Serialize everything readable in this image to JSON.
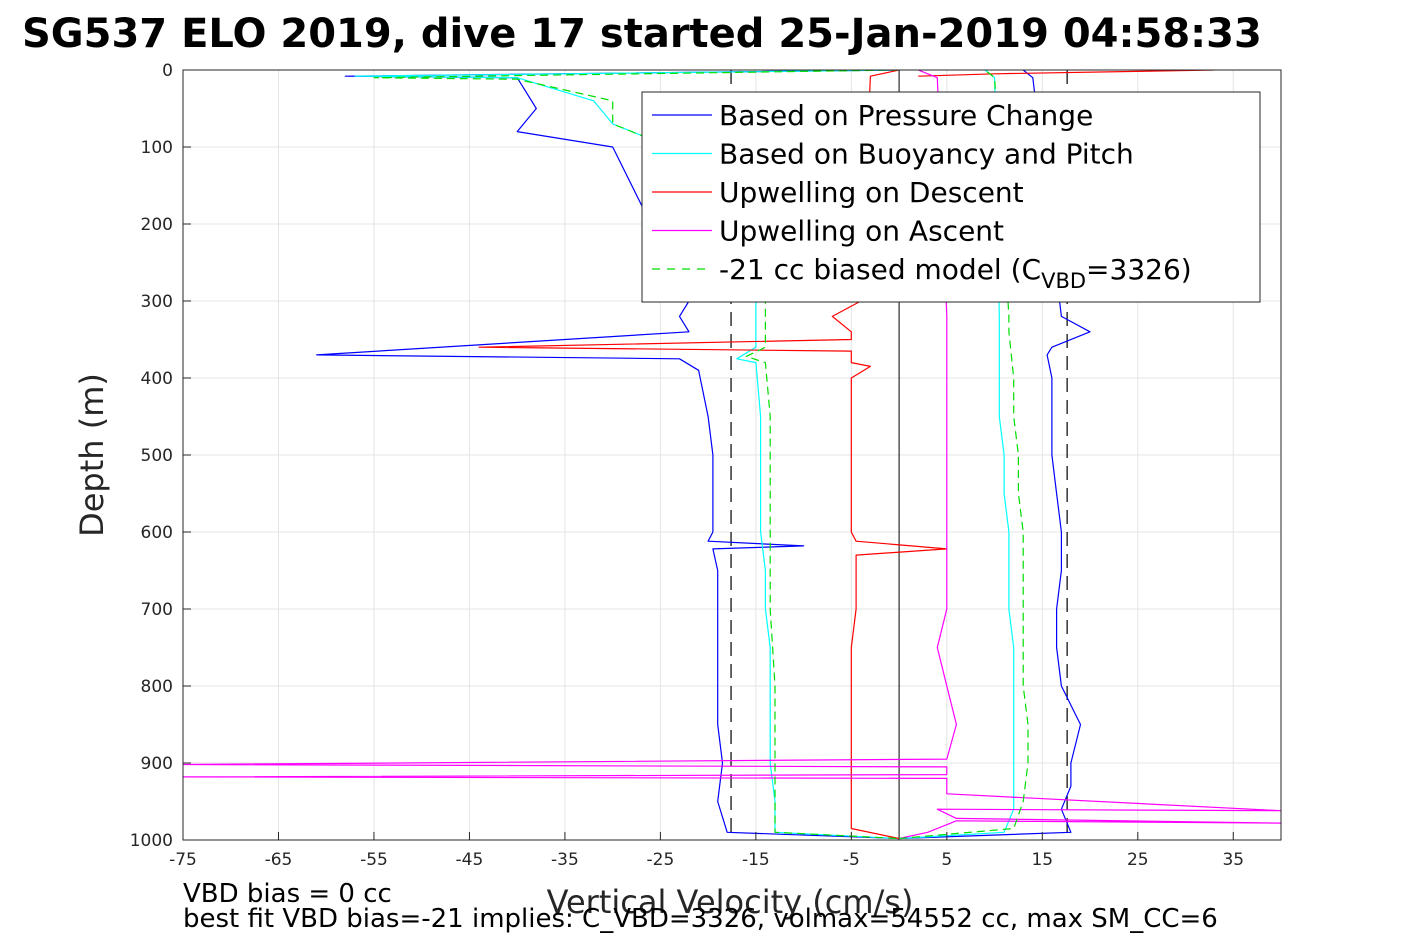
{
  "chart_data": {
    "type": "line",
    "title": "SG537 ELO 2019, dive 17 started 25-Jan-2019 04:58:33",
    "xlabel": "Vertical Velocity (cm/s)",
    "ylabel": "Depth (m)",
    "xlim": [
      -75,
      40
    ],
    "ylim": [
      0,
      1000
    ],
    "y_reversed": true,
    "grid": true,
    "legend_position": "top-right",
    "x_ticks": [
      "-75",
      "-65",
      "-55",
      "-45",
      "-35",
      "-25",
      "-15",
      "-5",
      "5",
      "15",
      "25",
      "35"
    ],
    "y_ticks": [
      "0",
      "100",
      "200",
      "300",
      "400",
      "500",
      "600",
      "700",
      "800",
      "900",
      "1000"
    ],
    "reference_lines": {
      "dashed_x": [
        -17.6,
        17.6
      ],
      "solid_x": [
        0
      ]
    },
    "series": [
      {
        "name": "Based on Pressure Change",
        "color": "#0000ff",
        "style": "solid",
        "descent": [
          [
            0,
            0
          ],
          [
            -58,
            8
          ],
          [
            -40,
            10
          ],
          [
            -38,
            50
          ],
          [
            -40,
            80
          ],
          [
            -30,
            100
          ],
          [
            -22,
            300
          ],
          [
            -23,
            320
          ],
          [
            -22,
            340
          ],
          [
            -61,
            370
          ],
          [
            -23,
            375
          ],
          [
            -21,
            390
          ],
          [
            -20,
            450
          ],
          [
            -19.5,
            500
          ],
          [
            -19.5,
            600
          ],
          [
            -20,
            612
          ],
          [
            -10,
            618
          ],
          [
            -19.5,
            622
          ],
          [
            -19,
            650
          ],
          [
            -19,
            700
          ],
          [
            -19,
            750
          ],
          [
            -19,
            800
          ],
          [
            -19,
            850
          ],
          [
            -18.5,
            900
          ],
          [
            -19,
            950
          ],
          [
            -18,
            990
          ],
          [
            0,
            998
          ]
        ],
        "ascent": [
          [
            0,
            998
          ],
          [
            18,
            990
          ],
          [
            17,
            960
          ],
          [
            18,
            930
          ],
          [
            18,
            900
          ],
          [
            19,
            850
          ],
          [
            17,
            800
          ],
          [
            16.5,
            750
          ],
          [
            16.5,
            700
          ],
          [
            17,
            650
          ],
          [
            17,
            600
          ],
          [
            16.5,
            550
          ],
          [
            16,
            500
          ],
          [
            16,
            450
          ],
          [
            16,
            400
          ],
          [
            15.5,
            370
          ],
          [
            16,
            360
          ],
          [
            20,
            340
          ],
          [
            17,
            320
          ],
          [
            14,
            10
          ],
          [
            13,
            0
          ]
        ]
      },
      {
        "name": "Based on Buoyancy and Pitch",
        "color": "#00ffff",
        "style": "solid",
        "descent": [
          [
            0,
            0
          ],
          [
            -57,
            8
          ],
          [
            -40,
            10
          ],
          [
            -32,
            40
          ],
          [
            -30,
            70
          ],
          [
            -24,
            100
          ],
          [
            -15,
            300
          ],
          [
            -15,
            320
          ],
          [
            -15,
            360
          ],
          [
            -17,
            375
          ],
          [
            -15,
            380
          ],
          [
            -14.5,
            450
          ],
          [
            -14.5,
            500
          ],
          [
            -14.5,
            600
          ],
          [
            -14,
            650
          ],
          [
            -14,
            700
          ],
          [
            -13.5,
            750
          ],
          [
            -13.5,
            800
          ],
          [
            -13.5,
            850
          ],
          [
            -13.5,
            900
          ],
          [
            -13,
            950
          ],
          [
            -13,
            990
          ],
          [
            0,
            998
          ]
        ],
        "ascent": [
          [
            0,
            998
          ],
          [
            11,
            990
          ],
          [
            12,
            960
          ],
          [
            12,
            930
          ],
          [
            12,
            900
          ],
          [
            12,
            850
          ],
          [
            12,
            800
          ],
          [
            12,
            750
          ],
          [
            11.5,
            700
          ],
          [
            11.5,
            650
          ],
          [
            11.5,
            600
          ],
          [
            11,
            550
          ],
          [
            11,
            500
          ],
          [
            10.5,
            450
          ],
          [
            10.5,
            400
          ],
          [
            10.5,
            370
          ],
          [
            10.5,
            340
          ],
          [
            10.5,
            320
          ],
          [
            10,
            10
          ],
          [
            9,
            0
          ]
        ]
      },
      {
        "name": "Upwelling on Descent",
        "color": "#ff0000",
        "style": "solid",
        "descent": [
          [
            0,
            0
          ],
          [
            -3,
            8
          ],
          [
            -4,
            300
          ],
          [
            -7,
            320
          ],
          [
            -5,
            340
          ],
          [
            -5,
            350
          ],
          [
            -44,
            360
          ],
          [
            -5,
            365
          ],
          [
            -5,
            380
          ],
          [
            -3,
            385
          ],
          [
            -5,
            400
          ],
          [
            -5,
            450
          ],
          [
            -5,
            500
          ],
          [
            -5,
            550
          ],
          [
            -5,
            600
          ],
          [
            -4.5,
            612
          ],
          [
            5,
            622
          ],
          [
            -4.5,
            630
          ],
          [
            -4.5,
            650
          ],
          [
            -4.5,
            700
          ],
          [
            -5,
            750
          ],
          [
            -5,
            800
          ],
          [
            -5,
            850
          ],
          [
            -5,
            900
          ],
          [
            -5,
            950
          ],
          [
            -5,
            985
          ],
          [
            0,
            998
          ]
        ],
        "ascent": [
          [
            33,
            0
          ],
          [
            10,
            5
          ],
          [
            2,
            8
          ]
        ]
      },
      {
        "name": "Upwelling on Ascent",
        "color": "#ff00ff",
        "style": "solid",
        "descent": [],
        "ascent": [
          [
            0,
            998
          ],
          [
            3,
            990
          ],
          [
            6,
            975
          ],
          [
            40,
            978
          ],
          [
            6,
            972
          ],
          [
            4,
            960
          ],
          [
            40,
            962
          ],
          [
            5,
            940
          ],
          [
            5,
            920
          ],
          [
            -75,
            918
          ],
          [
            5,
            915
          ],
          [
            5,
            905
          ],
          [
            -75,
            902
          ],
          [
            5,
            895
          ],
          [
            6,
            850
          ],
          [
            5,
            800
          ],
          [
            4,
            750
          ],
          [
            5,
            700
          ],
          [
            5,
            650
          ],
          [
            5,
            600
          ],
          [
            5,
            550
          ],
          [
            5,
            500
          ],
          [
            5,
            450
          ],
          [
            5,
            400
          ],
          [
            5,
            360
          ],
          [
            5,
            340
          ],
          [
            5,
            320
          ],
          [
            4,
            10
          ],
          [
            2,
            0
          ]
        ]
      },
      {
        "name": "-21 cc biased model (C_VBD=3326)",
        "legend_label_main": "-21 cc biased model (C",
        "legend_label_sub": "VBD",
        "legend_label_tail": "=3326)",
        "color": "#00dd00",
        "style": "dashed",
        "descent": [
          [
            0,
            0
          ],
          [
            -55,
            10
          ],
          [
            -40,
            12
          ],
          [
            -30,
            40
          ],
          [
            -30,
            70
          ],
          [
            -24,
            100
          ],
          [
            -14,
            300
          ],
          [
            -14,
            360
          ],
          [
            -16,
            372
          ],
          [
            -14,
            380
          ],
          [
            -13.5,
            450
          ],
          [
            -13.5,
            500
          ],
          [
            -13.5,
            600
          ],
          [
            -13.5,
            700
          ],
          [
            -13,
            800
          ],
          [
            -13,
            900
          ],
          [
            -13,
            990
          ],
          [
            0,
            998
          ]
        ],
        "ascent": [
          [
            0,
            998
          ],
          [
            12,
            985
          ],
          [
            13,
            950
          ],
          [
            13.5,
            900
          ],
          [
            13.5,
            850
          ],
          [
            13,
            800
          ],
          [
            13,
            750
          ],
          [
            13,
            700
          ],
          [
            13,
            650
          ],
          [
            13,
            600
          ],
          [
            12.5,
            550
          ],
          [
            12.5,
            500
          ],
          [
            12,
            450
          ],
          [
            12,
            400
          ],
          [
            11.5,
            340
          ],
          [
            11.5,
            320
          ],
          [
            10,
            10
          ],
          [
            9,
            0
          ]
        ]
      }
    ]
  },
  "footer": {
    "line1": "VBD bias = 0 cc",
    "line2": "best fit VBD bias=-21 implies: C_VBD=3326, volmax=54552 cc, max SM_CC=6"
  }
}
